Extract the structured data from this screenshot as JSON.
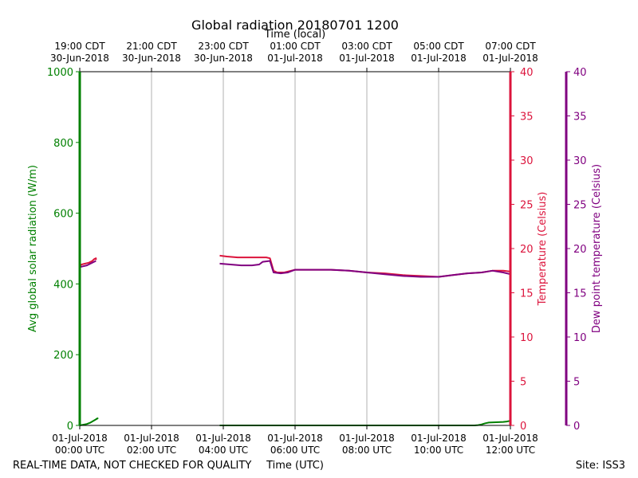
{
  "chart_data": {
    "type": "line",
    "title": "Global radiation 20180701 1200",
    "top_axis": {
      "label": "Time (local)",
      "ticks": [
        {
          "line1": "19:00 CDT",
          "line2": "30-Jun-2018"
        },
        {
          "line1": "21:00 CDT",
          "line2": "30-Jun-2018"
        },
        {
          "line1": "23:00 CDT",
          "line2": "30-Jun-2018"
        },
        {
          "line1": "01:00 CDT",
          "line2": "01-Jul-2018"
        },
        {
          "line1": "03:00 CDT",
          "line2": "01-Jul-2018"
        },
        {
          "line1": "05:00 CDT",
          "line2": "01-Jul-2018"
        },
        {
          "line1": "07:00 CDT",
          "line2": "01-Jul-2018"
        }
      ]
    },
    "x_axis": {
      "label": "Time (UTC)",
      "range": [
        0,
        12
      ],
      "tick_values": [
        0,
        2,
        4,
        6,
        8,
        10,
        12
      ],
      "ticks": [
        {
          "line1": "01-Jul-2018",
          "line2": "00:00 UTC"
        },
        {
          "line1": "01-Jul-2018",
          "line2": "02:00 UTC"
        },
        {
          "line1": "01-Jul-2018",
          "line2": "04:00 UTC"
        },
        {
          "line1": "01-Jul-2018",
          "line2": "06:00 UTC"
        },
        {
          "line1": "01-Jul-2018",
          "line2": "08:00 UTC"
        },
        {
          "line1": "01-Jul-2018",
          "line2": "10:00 UTC"
        },
        {
          "line1": "01-Jul-2018",
          "line2": "12:00 UTC"
        }
      ]
    },
    "y_axes": {
      "radiation": {
        "label": "Avg global solar radiation (W/m)",
        "range": [
          0,
          1000
        ],
        "ticks": [
          0,
          200,
          400,
          600,
          800,
          1000
        ],
        "color": "#008000"
      },
      "temperature": {
        "label": "Temperature (Celsius)",
        "range": [
          0,
          40
        ],
        "ticks": [
          0,
          5,
          10,
          15,
          20,
          25,
          30,
          35,
          40
        ],
        "color": "#dc143c"
      },
      "dewpoint": {
        "label": "Dew point temperature (Celsius)",
        "range": [
          0,
          40
        ],
        "ticks": [
          0,
          5,
          10,
          15,
          20,
          25,
          30,
          35,
          40
        ],
        "color": "#800080"
      }
    },
    "grid": "vertical",
    "series": [
      {
        "axis": "radiation",
        "color": "#008000",
        "segments": [
          [
            [
              0,
              0
            ],
            [
              0.1,
              2
            ],
            [
              0.2,
              4
            ],
            [
              0.3,
              8
            ],
            [
              0.4,
              14
            ],
            [
              0.5,
              20
            ],
            [
              0.45,
              18
            ]
          ],
          [
            [
              3.9,
              0
            ],
            [
              5,
              0
            ],
            [
              6,
              0
            ],
            [
              7,
              0
            ],
            [
              8,
              0
            ],
            [
              9,
              0
            ],
            [
              10,
              0
            ],
            [
              11,
              0
            ],
            [
              11.1,
              1
            ],
            [
              11.2,
              3
            ],
            [
              11.3,
              6
            ],
            [
              11.4,
              8
            ],
            [
              11.6,
              9
            ],
            [
              11.8,
              10
            ],
            [
              11.9,
              11
            ],
            [
              12,
              13
            ]
          ]
        ]
      },
      {
        "axis": "temperature",
        "color": "#dc143c",
        "segments": [
          [
            [
              0,
              18
            ],
            [
              0.05,
              18.2
            ],
            [
              0.15,
              18.3
            ],
            [
              0.25,
              18.4
            ],
            [
              0.35,
              18.6
            ],
            [
              0.4,
              18.8
            ],
            [
              0.45,
              18.9
            ],
            [
              0.45,
              18.7
            ]
          ],
          [
            [
              3.9,
              19.2
            ],
            [
              4.1,
              19.1
            ],
            [
              4.4,
              19.0
            ],
            [
              4.8,
              19.0
            ],
            [
              5.2,
              19.0
            ],
            [
              5.3,
              18.9
            ],
            [
              5.4,
              17.5
            ],
            [
              5.5,
              17.3
            ],
            [
              5.7,
              17.3
            ],
            [
              6.0,
              17.6
            ],
            [
              6.5,
              17.6
            ],
            [
              7.0,
              17.6
            ],
            [
              7.5,
              17.5
            ],
            [
              8.0,
              17.3
            ],
            [
              8.5,
              17.2
            ],
            [
              9.0,
              17.0
            ],
            [
              9.5,
              16.9
            ],
            [
              10.0,
              16.8
            ],
            [
              10.4,
              17.0
            ],
            [
              10.8,
              17.2
            ],
            [
              11.2,
              17.3
            ],
            [
              11.5,
              17.5
            ],
            [
              11.8,
              17.5
            ],
            [
              12,
              17.4
            ]
          ]
        ]
      },
      {
        "axis": "dewpoint",
        "color": "#800080",
        "segments": [
          [
            [
              0,
              17.9
            ],
            [
              0.1,
              18.0
            ],
            [
              0.2,
              18.1
            ],
            [
              0.3,
              18.3
            ],
            [
              0.4,
              18.5
            ],
            [
              0.45,
              18.6
            ]
          ],
          [
            [
              3.9,
              18.3
            ],
            [
              4.2,
              18.2
            ],
            [
              4.5,
              18.1
            ],
            [
              4.8,
              18.1
            ],
            [
              5.0,
              18.2
            ],
            [
              5.1,
              18.5
            ],
            [
              5.3,
              18.6
            ],
            [
              5.4,
              17.3
            ],
            [
              5.6,
              17.2
            ],
            [
              5.8,
              17.3
            ],
            [
              6.0,
              17.6
            ],
            [
              6.5,
              17.6
            ],
            [
              7.0,
              17.6
            ],
            [
              7.5,
              17.5
            ],
            [
              8.0,
              17.3
            ],
            [
              8.5,
              17.1
            ],
            [
              9.0,
              16.9
            ],
            [
              9.5,
              16.8
            ],
            [
              10.0,
              16.8
            ],
            [
              10.4,
              17.0
            ],
            [
              10.8,
              17.2
            ],
            [
              11.2,
              17.3
            ],
            [
              11.5,
              17.5
            ],
            [
              11.8,
              17.3
            ],
            [
              12,
              17.1
            ]
          ]
        ]
      }
    ]
  },
  "footer": {
    "left": "REAL-TIME DATA, NOT CHECKED FOR QUALITY",
    "right": "Site: ISS3"
  }
}
